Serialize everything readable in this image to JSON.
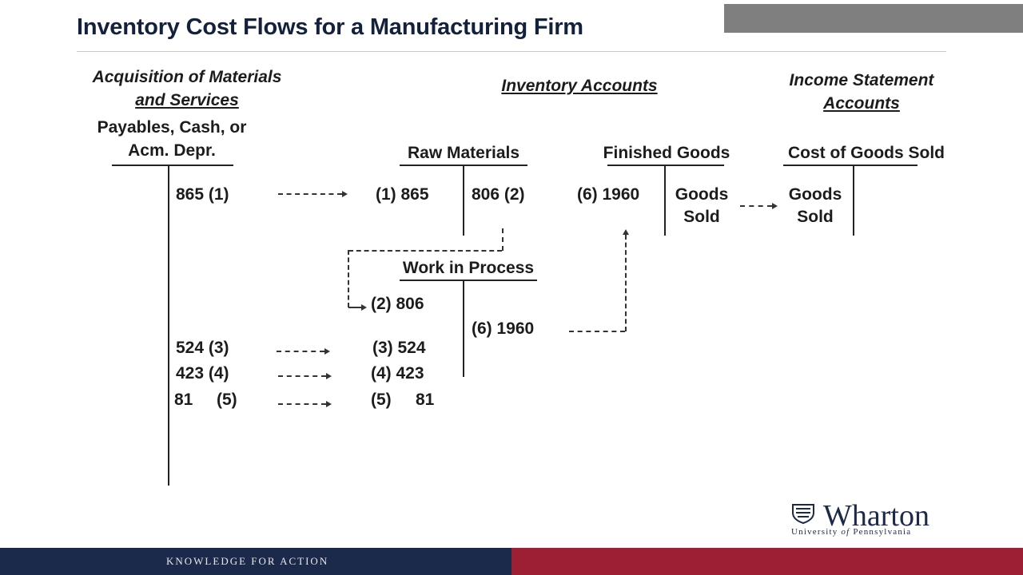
{
  "slide": {
    "title": "Inventory Cost Flows for a Manufacturing Firm",
    "colors": {
      "title": "#14213d",
      "top_bar": "#7f7f7f",
      "footer_blue": "#1b2a4a",
      "footer_red": "#9c1f33"
    }
  },
  "headers": {
    "acquisition_line1": "Acquisition of Materials",
    "acquisition_line2": "and Services",
    "inventory": "Inventory Accounts",
    "income_line1": "Income Statement",
    "income_line2": "Accounts"
  },
  "accounts": {
    "payables_line1": "Payables, Cash, or",
    "payables_line2": "Acm. Depr.",
    "raw_materials": "Raw Materials",
    "finished_goods": "Finished Goods",
    "cogs": "Cost of Goods Sold",
    "wip": "Work in Process"
  },
  "entries": {
    "payables_1": "865  (1)",
    "payables_3": "524  (3)",
    "payables_4": "423  (4)",
    "payables_5_amount": "81",
    "payables_5_ref": "(5)",
    "rm_debit_1": "(1)  865",
    "rm_credit_2": "806 (2)",
    "fg_debit_6": "(6)  1960",
    "fg_credit_line1": "Goods",
    "fg_credit_line2": "Sold",
    "cogs_debit_line1": "Goods",
    "cogs_debit_line2": "Sold",
    "wip_debit_2": "(2)  806",
    "wip_debit_3": "(3)  524",
    "wip_debit_4": "(4)  423",
    "wip_debit_5_ref": "(5)",
    "wip_debit_5_amount": "81",
    "wip_credit_6": "(6)  1960"
  },
  "logo": {
    "name": "Wharton",
    "sub_a": "University",
    "sub_of": "of",
    "sub_b": "Pennsylvania"
  },
  "footer": {
    "tagline": "KNOWLEDGE FOR ACTION"
  }
}
